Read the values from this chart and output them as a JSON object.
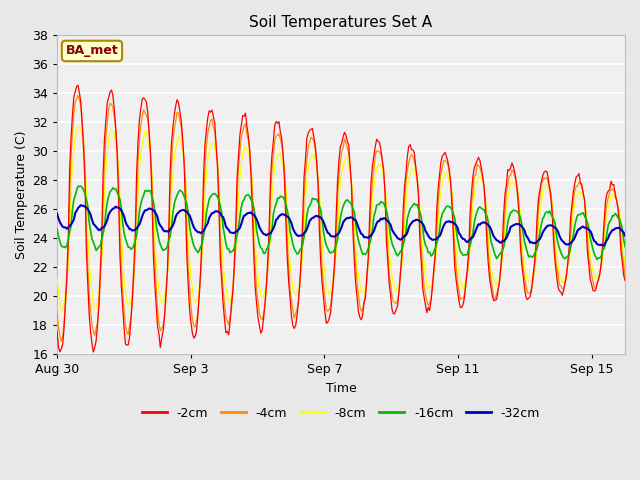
{
  "title": "Soil Temperatures Set A",
  "xlabel": "Time",
  "ylabel": "Soil Temperature (C)",
  "ylim": [
    16,
    38
  ],
  "yticks": [
    16,
    18,
    20,
    22,
    24,
    26,
    28,
    30,
    32,
    34,
    36,
    38
  ],
  "colors": {
    "-2cm": "#ff0000",
    "-4cm": "#ff8c00",
    "-8cm": "#ffff00",
    "-16cm": "#00bb00",
    "-32cm": "#0000bb"
  },
  "legend_labels": [
    "-2cm",
    "-4cm",
    "-8cm",
    "-16cm",
    "-32cm"
  ],
  "annotation_text": "BA_met",
  "annotation_color": "#8b0000",
  "annotation_bg": "#ffffcc",
  "annotation_edge": "#aa8800",
  "background_color": "#e8e8e8",
  "plot_bg": "#f0f0f0",
  "grid_color": "#ffffff",
  "xlim": [
    0,
    17
  ],
  "xtick_positions": [
    0,
    4,
    8,
    12,
    16
  ],
  "xtick_labels": [
    "Aug 30",
    "Sep 3",
    "Sep 7",
    "Sep 11",
    "Sep 15"
  ],
  "figsize": [
    6.4,
    4.8
  ],
  "dpi": 100
}
